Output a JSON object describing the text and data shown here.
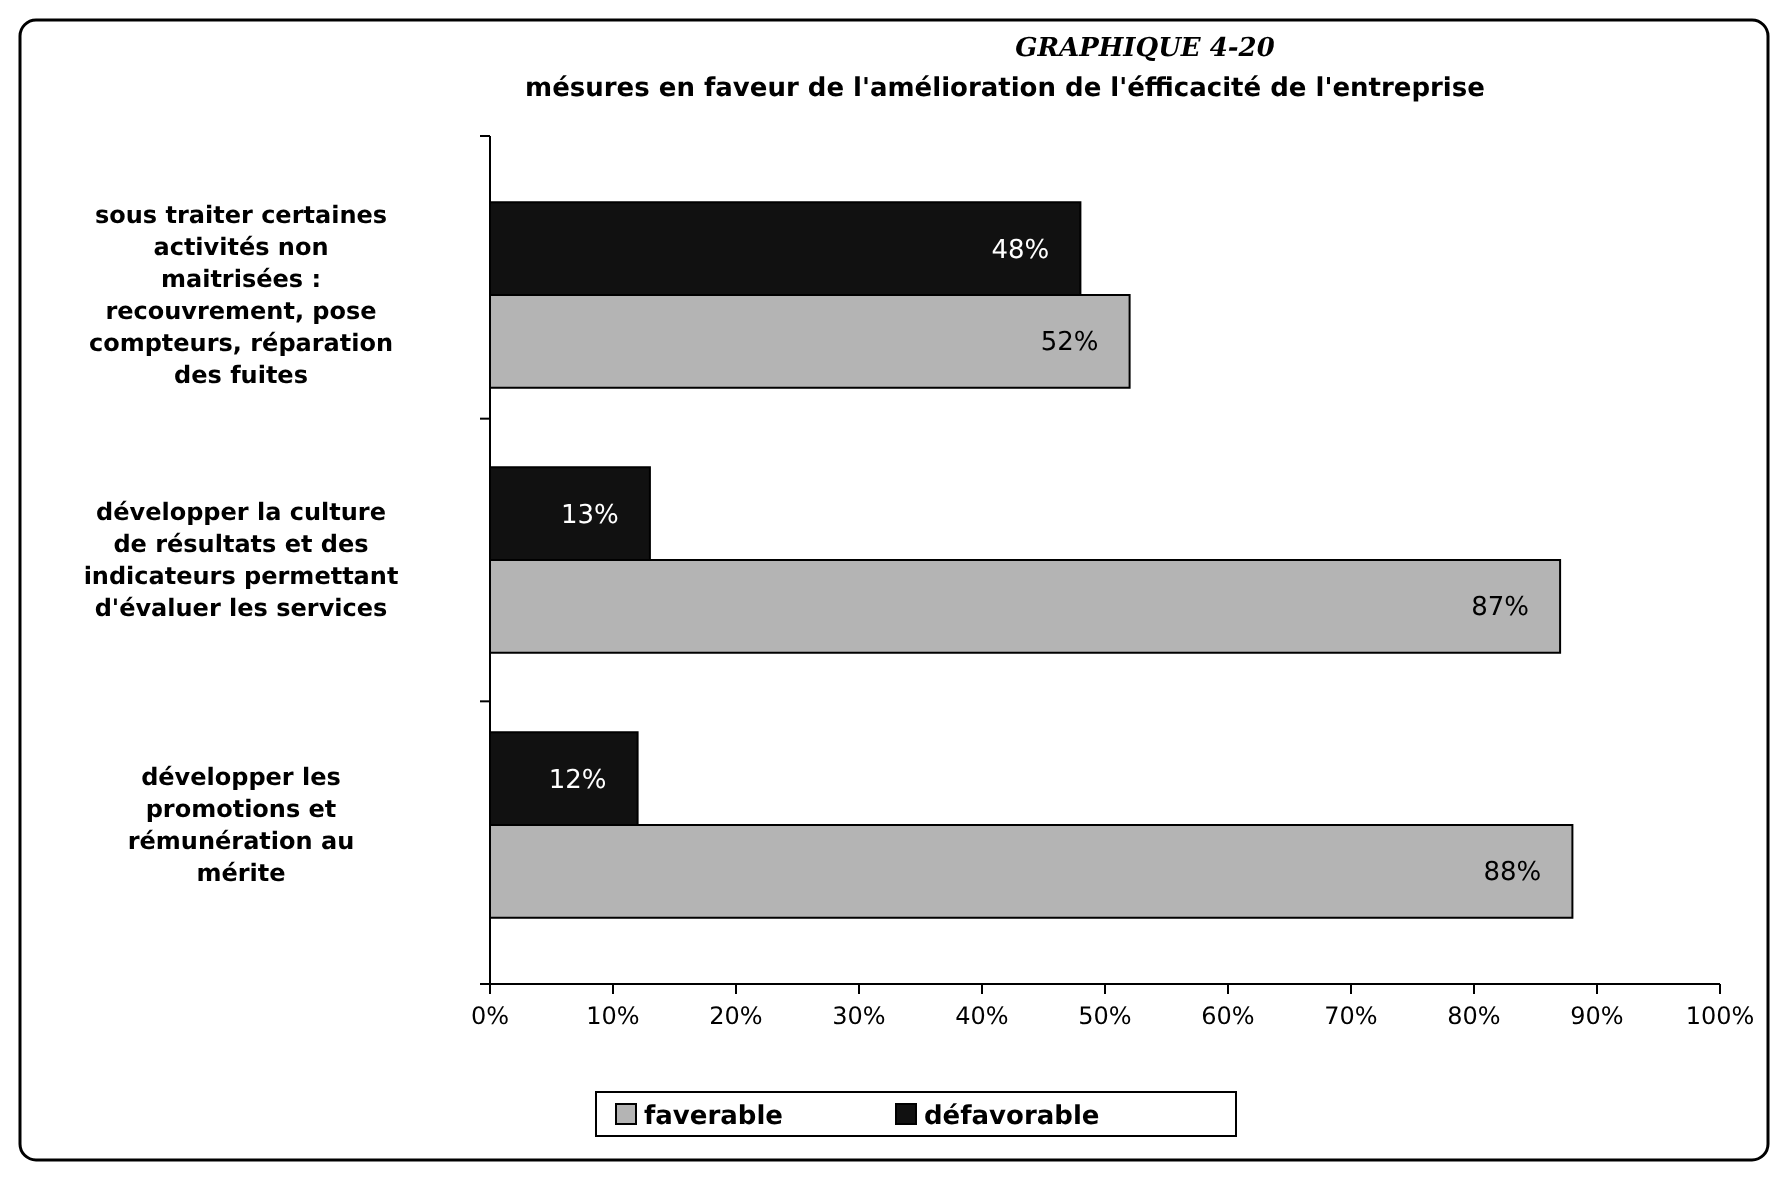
{
  "chart_data": {
    "type": "bar",
    "orientation": "horizontal",
    "title": "GRAPHIQUE 4-20",
    "subtitle": "mésures en faveur de l'amélioration de l'éfficacité de l'entreprise",
    "categories": [
      "sous traiter certaines\nactivités non\nmaitrisées :\nrecouvrement, pose\ncompteurs, réparation\ndes fuites",
      "développer la culture\nde résultats et des\nindicateurs permettant\nd'évaluer les services",
      "développer les\npromotions et\nrémunération au\nmérite"
    ],
    "series": [
      {
        "name": "faverable",
        "color": "#b4b4b4",
        "values": [
          52,
          87,
          88
        ],
        "value_labels": [
          "52%",
          "87%",
          "88%"
        ]
      },
      {
        "name": "défavorable",
        "color": "#111111",
        "values": [
          48,
          13,
          12
        ],
        "value_labels": [
          "48%",
          "13%",
          "12%"
        ]
      }
    ],
    "xlim": [
      0,
      100
    ],
    "xticks": [
      {
        "value": 0,
        "label": "0%"
      },
      {
        "value": 10,
        "label": "10%"
      },
      {
        "value": 20,
        "label": "20%"
      },
      {
        "value": 30,
        "label": "30%"
      },
      {
        "value": 40,
        "label": "40%"
      },
      {
        "value": 50,
        "label": "50%"
      },
      {
        "value": 60,
        "label": "60%"
      },
      {
        "value": 70,
        "label": "70%"
      },
      {
        "value": 80,
        "label": "80%"
      },
      {
        "value": 90,
        "label": "90%"
      },
      {
        "value": 100,
        "label": "100%"
      }
    ],
    "grid": false,
    "legend": "bottom"
  }
}
